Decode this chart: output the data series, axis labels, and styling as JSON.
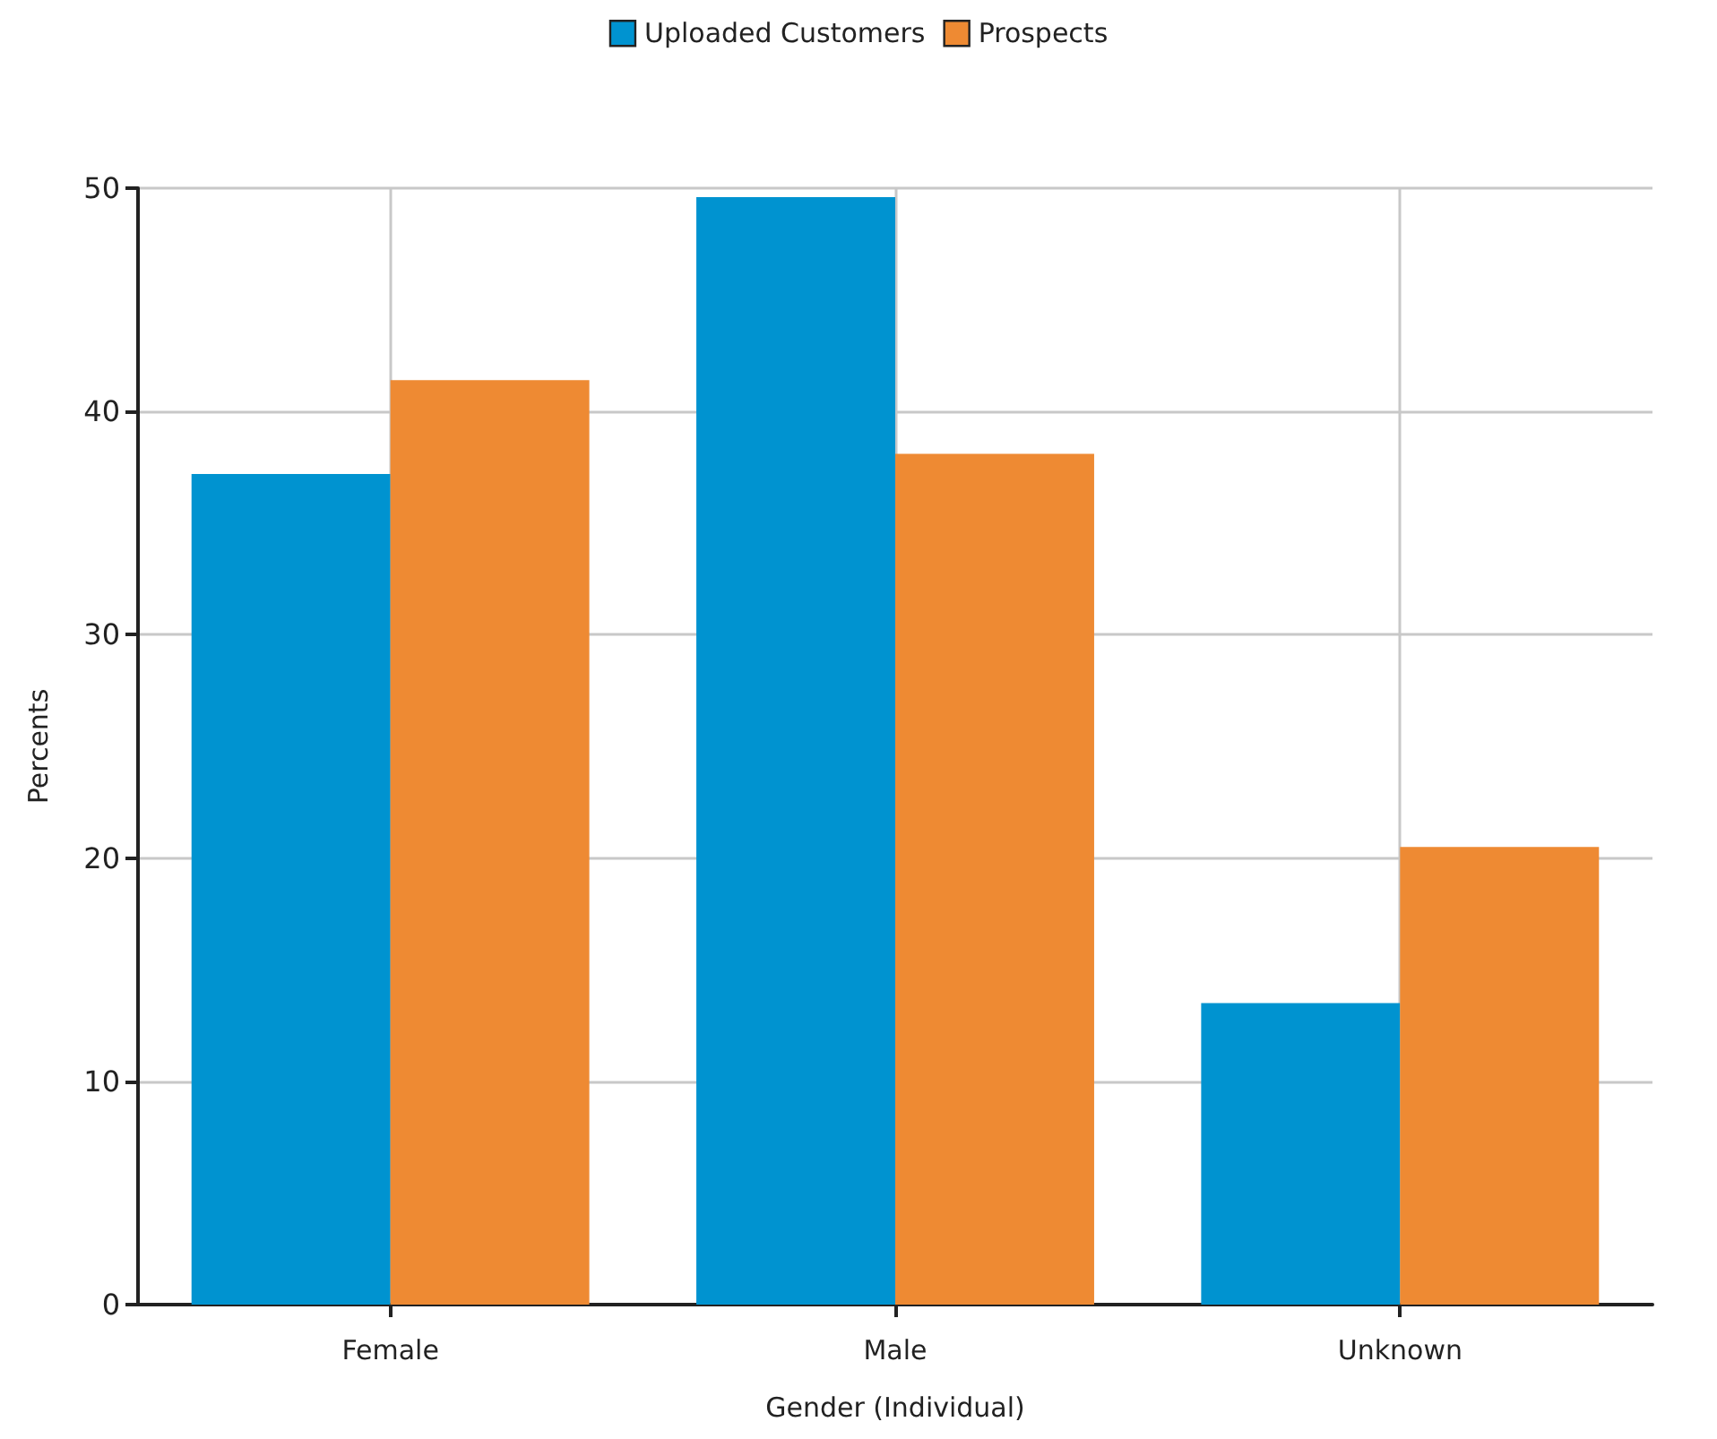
{
  "chart_data": {
    "type": "bar",
    "xlabel": "Gender (Individual)",
    "ylabel": "Percents",
    "categories": [
      "Female",
      "Male",
      "Unknown"
    ],
    "series": [
      {
        "name": "Uploaded Customers",
        "color": "#0093d0",
        "values": [
          37.2,
          49.6,
          13.5
        ]
      },
      {
        "name": "Prospects",
        "color": "#ee8a33",
        "values": [
          41.4,
          38.1,
          20.5
        ]
      }
    ],
    "ylim": [
      0,
      50
    ],
    "yticks": [
      0,
      10,
      20,
      30,
      40,
      50
    ],
    "grid": true,
    "legend": "top"
  }
}
